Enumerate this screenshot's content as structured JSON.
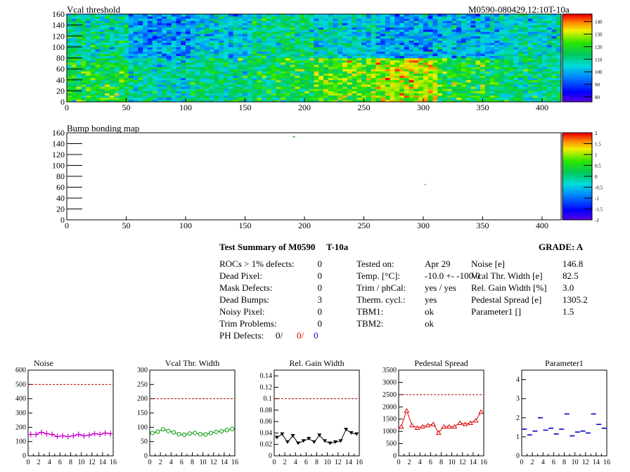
{
  "chart_data": [
    {
      "type": "heatmap",
      "title": "Vcal threshold",
      "module_label": "M0590-080429.12:10T-10a",
      "x_ticks": [
        "0",
        "50",
        "100",
        "150",
        "200",
        "250",
        "300",
        "350",
        "400"
      ],
      "y_ticks": [
        "0",
        "20",
        "40",
        "60",
        "80",
        "100",
        "120",
        "140",
        "160"
      ],
      "xlim": [
        0,
        416
      ],
      "ylim": [
        0,
        160
      ],
      "color_ticks": [
        "80",
        "90",
        "100",
        "110",
        "120",
        "130",
        "140"
      ],
      "color_range": [
        76,
        146
      ],
      "roc_means": {
        "top": [
          110,
          98,
          104,
          112,
          106,
          100,
          102,
          108
        ],
        "bottom": [
          118,
          108,
          112,
          116,
          124,
          130,
          118,
          112
        ]
      }
    },
    {
      "type": "heatmap",
      "title": "Bump bonding map",
      "x_ticks": [
        "0",
        "50",
        "100",
        "150",
        "200",
        "250",
        "300",
        "350",
        "400"
      ],
      "y_ticks": [
        "0",
        "20",
        "40",
        "60",
        "80",
        "100",
        "120",
        "140",
        "160"
      ],
      "xlim": [
        0,
        416
      ],
      "ylim": [
        0,
        160
      ],
      "color_ticks": [
        "2",
        "1.5",
        "1",
        "0.5",
        "0",
        "-0.5",
        "-1",
        "-1.5",
        "-2"
      ],
      "color_range": [
        -2,
        2
      ],
      "defects": [
        [
          190,
          154
        ],
        [
          191,
          153
        ],
        [
          301,
          66
        ]
      ]
    },
    {
      "type": "line",
      "title": "Noise",
      "color": "#cc00cc",
      "marker": "plus",
      "x": [
        0,
        1,
        2,
        3,
        4,
        5,
        6,
        7,
        8,
        9,
        10,
        11,
        12,
        13,
        14,
        15
      ],
      "values": [
        150,
        150,
        165,
        155,
        150,
        135,
        140,
        135,
        140,
        150,
        140,
        145,
        155,
        150,
        160,
        155
      ],
      "ylim": [
        0,
        600
      ],
      "y_ticks": [
        0,
        100,
        200,
        300,
        400,
        500,
        600
      ],
      "x_ticks": [
        0,
        2,
        4,
        6,
        8,
        10,
        12,
        14,
        16
      ],
      "threshold": 500
    },
    {
      "type": "line",
      "title": "Vcal Thr. Width",
      "color": "#009900",
      "marker": "circle",
      "x": [
        0,
        1,
        2,
        3,
        4,
        5,
        6,
        7,
        8,
        9,
        10,
        11,
        12,
        13,
        14,
        15
      ],
      "values": [
        80,
        85,
        93,
        87,
        82,
        76,
        74,
        78,
        80,
        76,
        75,
        80,
        84,
        86,
        90,
        94
      ],
      "ylim": [
        0,
        300
      ],
      "y_ticks": [
        0,
        50,
        100,
        150,
        200,
        250,
        300
      ],
      "x_ticks": [
        0,
        2,
        4,
        6,
        8,
        10,
        12,
        14,
        16
      ],
      "threshold": 200
    },
    {
      "type": "line",
      "title": "Rel. Gain Width",
      "color": "#000000",
      "marker": "triangle-down",
      "x": [
        0,
        1,
        2,
        3,
        4,
        5,
        6,
        7,
        8,
        9,
        10,
        11,
        12,
        13,
        14,
        15
      ],
      "values": [
        0.032,
        0.038,
        0.024,
        0.035,
        0.022,
        0.026,
        0.03,
        0.024,
        0.036,
        0.026,
        0.022,
        0.024,
        0.026,
        0.046,
        0.04,
        0.038
      ],
      "ylim": [
        0,
        0.15
      ],
      "y_ticks": [
        0,
        0.02,
        0.04,
        0.06,
        0.08,
        0.1,
        0.12,
        0.14
      ],
      "y_tick_labels": [
        "0",
        "0.02",
        "0.04",
        "0.06",
        "0.08",
        "0.1",
        "0.12",
        "0.14"
      ],
      "x_ticks": [
        0,
        2,
        4,
        6,
        8,
        10,
        12,
        14,
        16
      ],
      "threshold": 0.1
    },
    {
      "type": "line",
      "title": "Pedestal Spread",
      "color": "#dd0000",
      "marker": "triangle-up",
      "x": [
        0,
        1,
        2,
        3,
        4,
        5,
        6,
        7,
        8,
        9,
        10,
        11,
        12,
        13,
        14,
        15
      ],
      "values": [
        1200,
        1850,
        1250,
        1150,
        1200,
        1250,
        1300,
        950,
        1200,
        1200,
        1200,
        1350,
        1300,
        1350,
        1450,
        1800
      ],
      "ylim": [
        0,
        3500
      ],
      "y_ticks": [
        0,
        500,
        1000,
        1500,
        2000,
        2500,
        3000,
        3500
      ],
      "x_ticks": [
        0,
        2,
        4,
        6,
        8,
        10,
        12,
        14,
        16
      ],
      "threshold": 2500
    },
    {
      "type": "scatter",
      "title": "Parameter1",
      "color": "#0000cc",
      "marker": "hbar",
      "x": [
        0,
        1,
        2,
        3,
        4,
        5,
        6,
        7,
        8,
        9,
        10,
        11,
        12,
        13,
        14,
        15
      ],
      "values": [
        1.4,
        1.1,
        1.3,
        2.0,
        1.35,
        1.45,
        1.15,
        1.4,
        2.2,
        1.05,
        1.25,
        1.3,
        1.2,
        2.2,
        1.65,
        1.45
      ],
      "ylim": [
        0,
        4.5
      ],
      "y_ticks": [
        0,
        1,
        2,
        3,
        4
      ],
      "x_ticks": [
        0,
        2,
        4,
        6,
        8,
        10,
        12,
        14,
        16
      ]
    }
  ],
  "summary": {
    "title": "Test Summary of M0590",
    "temp_label": "T-10a",
    "grade": "GRADE:  A",
    "left_rows": [
      {
        "label": "ROCs > 1% defects:",
        "value": "0"
      },
      {
        "label": "Dead Pixel:",
        "value": "0"
      },
      {
        "label": "Mask Defects:",
        "value": "0"
      },
      {
        "label": "Dead Bumps:",
        "value": "3"
      },
      {
        "label": "Noisy Pixel:",
        "value": "0"
      },
      {
        "label": "Trim Problems:",
        "value": "0"
      }
    ],
    "ph_defects": {
      "label": "PH Defects:",
      "v1": "0/",
      "v2": "0/",
      "v3": "0"
    },
    "mid_rows": [
      {
        "label": "Tested on:",
        "value": "Apr 29"
      },
      {
        "label": "Temp. [°C]:",
        "value": "-10.0 +- -100.0"
      },
      {
        "label": "Trim / phCal:",
        "value": "yes / yes"
      },
      {
        "label": "Therm. cycl.:",
        "value": "yes"
      },
      {
        "label": "TBM1:",
        "value": "ok"
      },
      {
        "label": "TBM2:",
        "value": "ok"
      }
    ],
    "right_rows": [
      {
        "label": "Noise [e]",
        "value": "146.8"
      },
      {
        "label": "Vcal Thr. Width [e]",
        "value": "82.5"
      },
      {
        "label": "Rel. Gain Width [%]",
        "value": "3.0"
      },
      {
        "label": "Pedestal Spread [e]",
        "value": "1305.2"
      },
      {
        "label": "Parameter1 []",
        "value": "1.5"
      }
    ]
  }
}
